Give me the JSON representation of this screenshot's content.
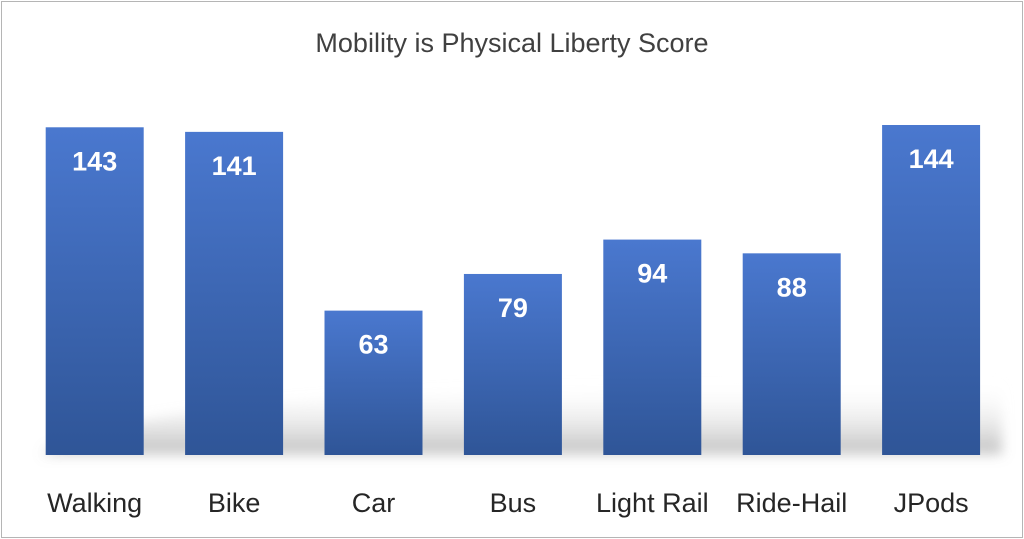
{
  "chart_data": {
    "type": "bar",
    "title": "Mobility is Physical Liberty Score",
    "categories": [
      "Walking",
      "Bike",
      "Car",
      "Bus",
      "Light Rail",
      "Ride-Hail",
      "JPods"
    ],
    "values": [
      143,
      141,
      63,
      79,
      94,
      88,
      144
    ],
    "value_labels": [
      "143",
      "141",
      "63",
      "79",
      "94",
      "88",
      "144"
    ],
    "ylim": [
      0,
      144
    ],
    "xlabel": "",
    "ylabel": "",
    "grid": false,
    "legend": "none",
    "colors": {
      "bar_top": "#4a78cf",
      "bar_bottom": "#2f5597",
      "label": "#ffffff",
      "title": "#404040"
    }
  }
}
